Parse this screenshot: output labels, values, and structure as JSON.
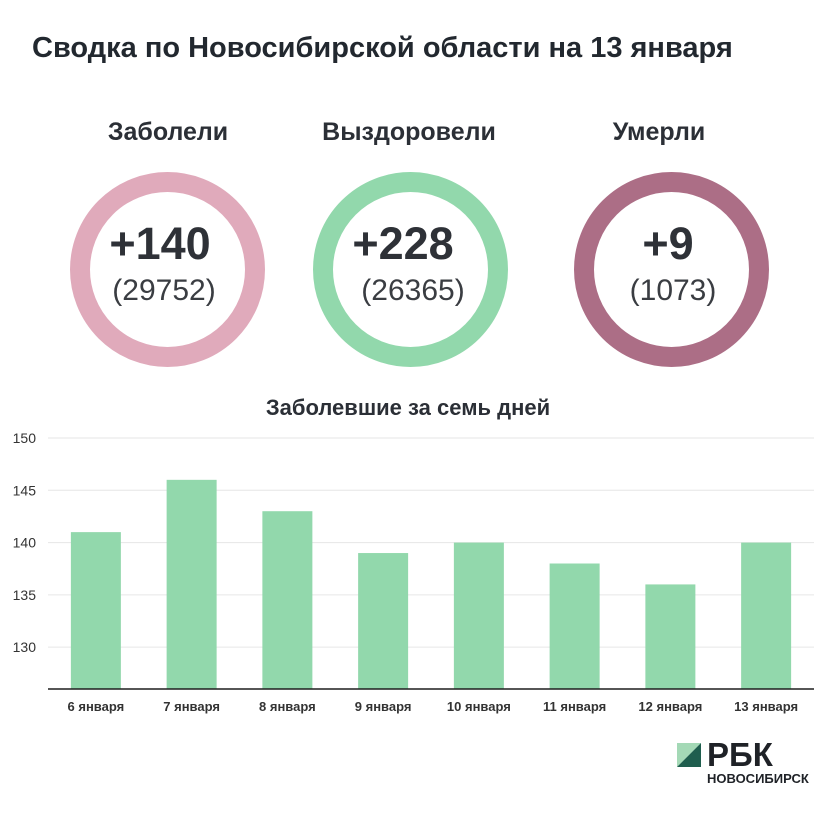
{
  "title": "Сводка по Новосибирской области на 13 января",
  "stats": [
    {
      "label": "Заболели",
      "change": "+140",
      "total": "(29752)",
      "color": "#e0aabb"
    },
    {
      "label": "Выздоровели",
      "change": "+228",
      "total": "(26365)",
      "color": "#92d8ac"
    },
    {
      "label": "Умерли",
      "change": "+9",
      "total": "(1073)",
      "color": "#ac6e86"
    }
  ],
  "chart_data": {
    "type": "bar",
    "title": "Заболевшие за семь дней",
    "categories": [
      "6 января",
      "7 января",
      "8 января",
      "9 января",
      "10 января",
      "11 января",
      "12 января",
      "13 января"
    ],
    "values": [
      141,
      146,
      143,
      139,
      140,
      138,
      136,
      140
    ],
    "ylim": [
      126,
      150
    ],
    "yticks": [
      130,
      135,
      140,
      145,
      150
    ],
    "grid": true,
    "bar_color": "#92d8ac"
  },
  "brand": {
    "name": "РБК",
    "city": "НОВОСИБИРСК"
  }
}
